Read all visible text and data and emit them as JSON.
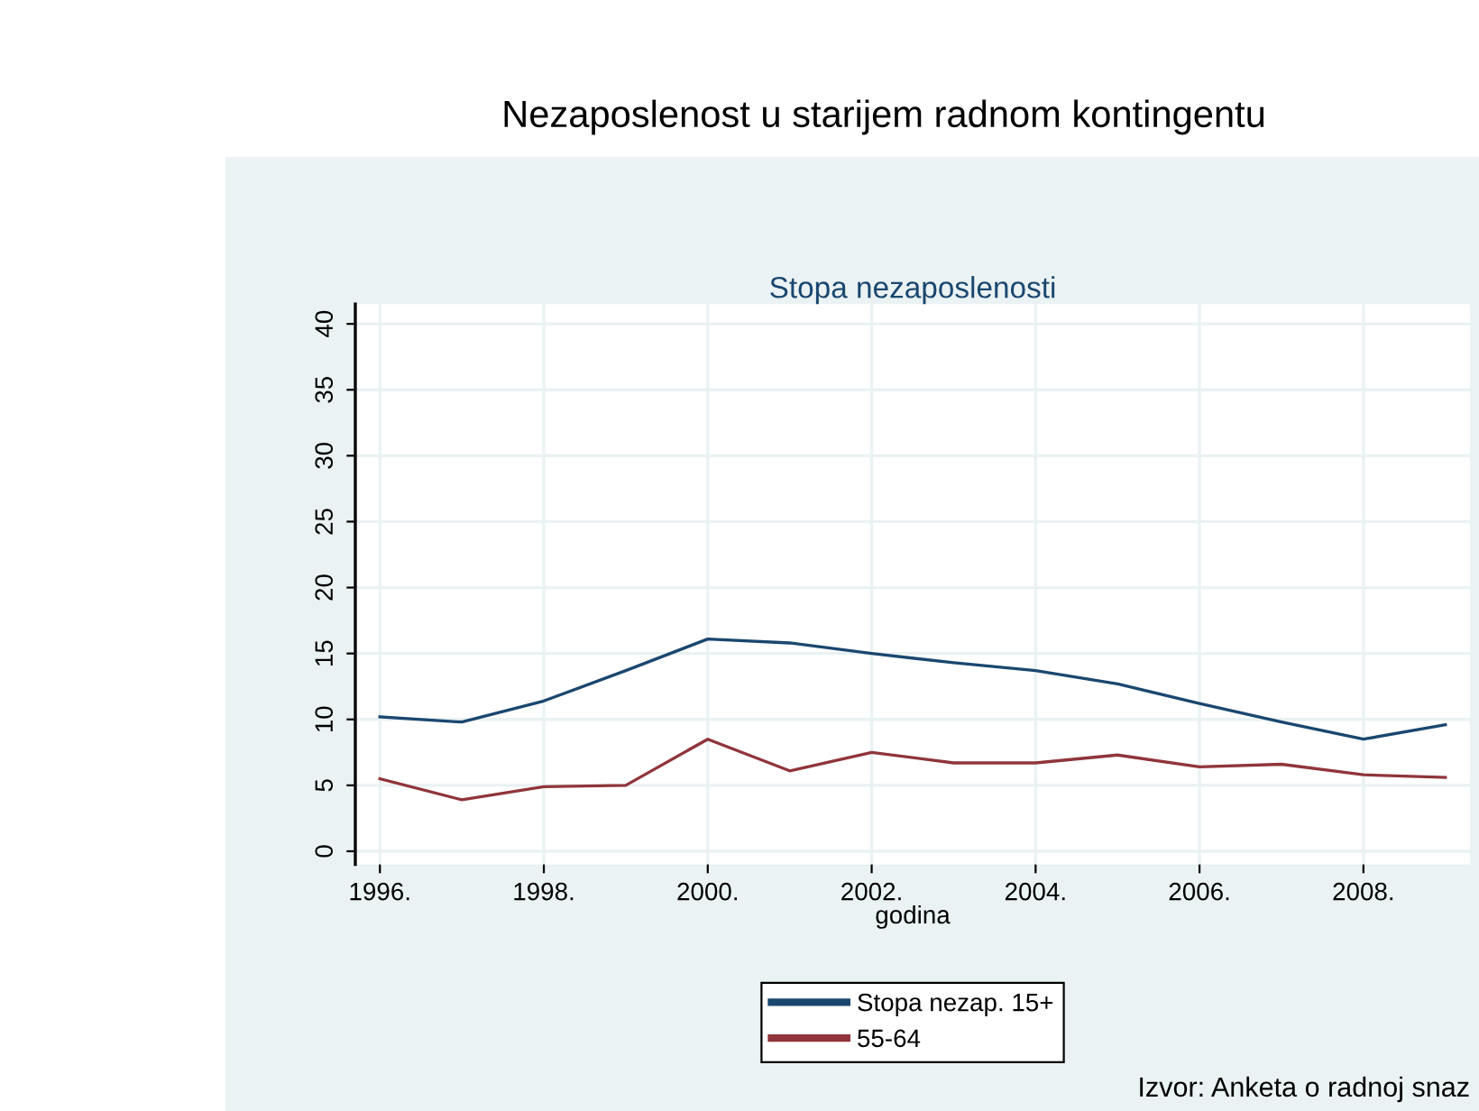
{
  "chart_data": {
    "type": "line",
    "title": "Nezaposlenost u starijem radnom kontingentu",
    "subtitle": "Stopa nezaposlenosti",
    "xlabel": "godina",
    "x": [
      1996,
      1997,
      1998,
      1999,
      2000,
      2001,
      2002,
      2003,
      2004,
      2005,
      2006,
      2007,
      2008,
      2009
    ],
    "series": [
      {
        "name": "Stopa nezap. 15+",
        "color": "#1a476f",
        "values": [
          10.2,
          9.8,
          11.4,
          13.7,
          16.1,
          15.8,
          15.0,
          14.3,
          13.7,
          12.7,
          11.2,
          9.8,
          8.5,
          9.6
        ]
      },
      {
        "name": "55-64",
        "color": "#90353b",
        "values": [
          5.5,
          3.9,
          4.9,
          5.0,
          8.5,
          6.1,
          7.5,
          6.7,
          6.7,
          7.3,
          6.4,
          6.6,
          5.8,
          5.6
        ]
      }
    ],
    "xlim": [
      1995.7,
      2009.3
    ],
    "xticks": [
      {
        "value": 1996,
        "label": "1996."
      },
      {
        "value": 1998,
        "label": "1998."
      },
      {
        "value": 2000,
        "label": "2000."
      },
      {
        "value": 2002,
        "label": "2002."
      },
      {
        "value": 2004,
        "label": "2004."
      },
      {
        "value": 2006,
        "label": "2006."
      },
      {
        "value": 2008,
        "label": "2008."
      }
    ],
    "ylim": [
      -1,
      41.5
    ],
    "yticks": [
      0,
      5,
      10,
      15,
      20,
      25,
      30,
      35,
      40
    ],
    "grid": true,
    "legend": "bottom",
    "marker": "none",
    "line_style": "solid",
    "annotations": [
      "Izvor: Anketa o radnoj snaz"
    ]
  }
}
